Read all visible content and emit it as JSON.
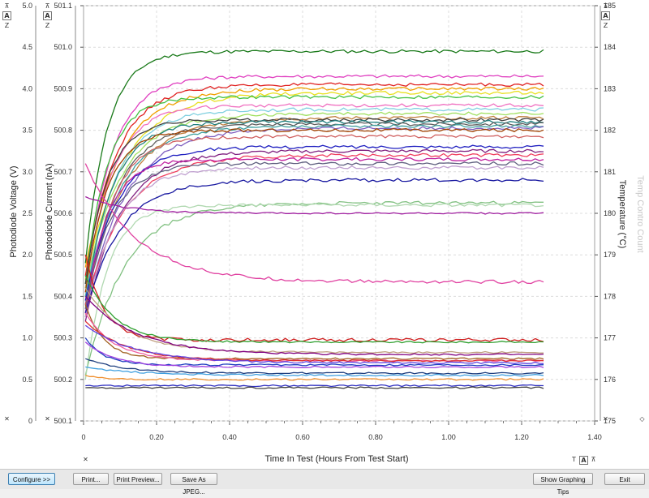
{
  "chart_data": {
    "type": "line",
    "xlabel": "Time In Test (Hours From Test Start)",
    "x_ticks": [
      "0",
      "0.20",
      "0.40",
      "0.60",
      "0.80",
      "1.00",
      "1.20",
      "1.40"
    ],
    "xlim": [
      0,
      1.4
    ],
    "left_axis_1": {
      "label": "Photodiode Voltage (V)",
      "ticks": [
        "0",
        "0.5",
        "1.0",
        "1.5",
        "2.0",
        "2.5",
        "3.0",
        "3.5",
        "4.0",
        "4.5",
        "5.0"
      ],
      "ylim": [
        0,
        5
      ]
    },
    "left_axis_2": {
      "label": "Photodiode Current (nA)",
      "ticks": [
        "500.1",
        "500.2",
        "500.3",
        "500.4",
        "500.5",
        "500.6",
        "500.7",
        "500.8",
        "500.9",
        "501.0",
        "501.1"
      ],
      "ylim": [
        500.1,
        501.1
      ]
    },
    "right_axis": {
      "label": "Temperature (°C)",
      "ticks": [
        "175",
        "176",
        "177",
        "178",
        "179",
        "180",
        "181",
        "182",
        "183",
        "184",
        "185"
      ],
      "ylim": [
        175,
        185
      ]
    },
    "right_axis_faded_label": "Temp Contro Count",
    "grid": true,
    "series_x_end": 1.26,
    "series": [
      {
        "color": "#1a7a1a",
        "start": 500.48,
        "end": 500.99
      },
      {
        "color": "#e040c0",
        "start": 500.42,
        "end": 500.93
      },
      {
        "color": "#e02020",
        "start": 500.45,
        "end": 500.91
      },
      {
        "color": "#f0a000",
        "start": 500.47,
        "end": 500.9
      },
      {
        "color": "#e8e020",
        "start": 500.44,
        "end": 500.89
      },
      {
        "color": "#40c040",
        "start": 500.43,
        "end": 500.88
      },
      {
        "color": "#f070c0",
        "start": 500.41,
        "end": 500.86
      },
      {
        "color": "#80d0e0",
        "start": 500.4,
        "end": 500.85
      },
      {
        "color": "#a0e060",
        "start": 500.42,
        "end": 500.84
      },
      {
        "color": "#c08040",
        "start": 500.39,
        "end": 500.83
      },
      {
        "color": "#404040",
        "start": 500.43,
        "end": 500.825
      },
      {
        "color": "#208080",
        "start": 500.38,
        "end": 500.82
      },
      {
        "color": "#606060",
        "start": 500.37,
        "end": 500.815
      },
      {
        "color": "#40a0a0",
        "start": 500.4,
        "end": 500.81
      },
      {
        "color": "#8060c0",
        "start": 500.36,
        "end": 500.805
      },
      {
        "color": "#a04000",
        "start": 500.41,
        "end": 500.8
      },
      {
        "color": "#d06060",
        "start": 500.35,
        "end": 500.785
      },
      {
        "color": "#2020c0",
        "start": 500.39,
        "end": 500.76
      },
      {
        "color": "#802080",
        "start": 500.34,
        "end": 500.75
      },
      {
        "color": "#f04060",
        "start": 500.38,
        "end": 500.74
      },
      {
        "color": "#c020a0",
        "start": 500.36,
        "end": 500.73
      },
      {
        "color": "#606080",
        "start": 500.37,
        "end": 500.72
      },
      {
        "color": "#c0a0d0",
        "start": 500.35,
        "end": 500.71
      },
      {
        "color": "#1818a0",
        "start": 500.36,
        "end": 500.68
      },
      {
        "color": "#80c080",
        "start": 500.21,
        "end": 500.625
      },
      {
        "color": "#b0d8b0",
        "start": 500.2,
        "end": 500.62
      },
      {
        "color": "#a020a0",
        "start": 500.64,
        "end": 500.6
      },
      {
        "color": "#e040a0",
        "start": 500.72,
        "end": 500.435
      },
      {
        "color": "#d02020",
        "start": 500.5,
        "end": 500.295
      },
      {
        "color": "#30a030",
        "start": 500.45,
        "end": 500.29
      },
      {
        "color": "#c0a080",
        "start": 500.42,
        "end": 500.265
      },
      {
        "color": "#800080",
        "start": 500.4,
        "end": 500.26
      },
      {
        "color": "#a06020",
        "start": 500.38,
        "end": 500.25
      },
      {
        "color": "#f060a0",
        "start": 500.36,
        "end": 500.245
      },
      {
        "color": "#e03030",
        "start": 500.34,
        "end": 500.245
      },
      {
        "color": "#6040e0",
        "start": 500.33,
        "end": 500.24
      },
      {
        "color": "#2040c0",
        "start": 500.3,
        "end": 500.235
      },
      {
        "color": "#a040e0",
        "start": 500.29,
        "end": 500.23
      },
      {
        "color": "#204080",
        "start": 500.25,
        "end": 500.215
      },
      {
        "color": "#40a0e0",
        "start": 500.23,
        "end": 500.21
      },
      {
        "color": "#f09030",
        "start": 500.21,
        "end": 500.2
      },
      {
        "color": "#3030c0",
        "start": 500.185,
        "end": 500.185
      },
      {
        "color": "#404040",
        "start": 500.18,
        "end": 500.18
      }
    ]
  },
  "controls": {
    "axis_lock": "⊼",
    "axis_auto": "A",
    "axis_zoom": "Z",
    "axis_reset": "✕",
    "x_text": "T",
    "x_auto": "A",
    "x_zoom": "⊼",
    "diamond": "◇"
  },
  "buttons": {
    "configure": "Configure >>",
    "print": "Print...",
    "print_preview": "Print Preview...",
    "save_jpeg": "Save As JPEG...",
    "graphing_tips": "Show Graphing Tips",
    "exit": "Exit"
  }
}
